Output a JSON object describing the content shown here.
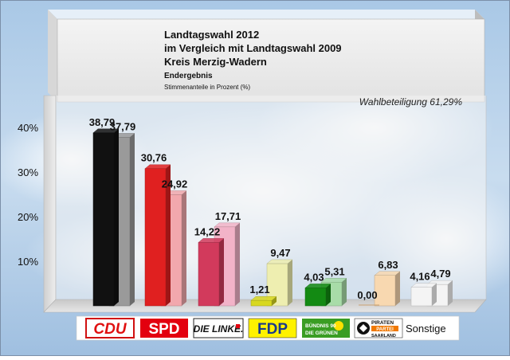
{
  "chart_data": {
    "type": "bar",
    "title_lines": [
      "Landtagswahl 2012",
      "im Vergleich mit Landtagswahl 2009",
      "Kreis Merzig-Wadern"
    ],
    "subtitle": "Endergebnis",
    "note": "Stimmenanteile in Prozent (%)",
    "turnout_label": "Wahlbeteiligung 61,29%",
    "ylim": [
      0,
      45
    ],
    "y_ticks": [
      {
        "value": 10,
        "label": "10%"
      },
      {
        "value": 20,
        "label": "20%"
      },
      {
        "value": 30,
        "label": "30%"
      },
      {
        "value": 40,
        "label": "40%"
      }
    ],
    "categories": [
      "CDU",
      "SPD",
      "DIE LINKE.",
      "FDP",
      "BÜNDNIS 90 DIE GRÜNEN",
      "PIRATEN PARTEI SAARLAND",
      "Sonstige"
    ],
    "series": [
      {
        "values": [
          38.79,
          30.76,
          14.22,
          1.21,
          4.03,
          0.0,
          4.16
        ],
        "labels": [
          "38,79",
          "30,76",
          "14,22",
          "1,21",
          "4,03",
          "0,00",
          "4,16"
        ]
      },
      {
        "values": [
          37.79,
          24.92,
          17.71,
          9.47,
          5.31,
          6.83,
          4.79
        ],
        "labels": [
          "37,79",
          "24,92",
          "17,71",
          "9,47",
          "5,31",
          "6,83",
          "4,79"
        ]
      }
    ],
    "colors_2012": [
      "#111111",
      "#e02020",
      "#d23a5c",
      "#d8d820",
      "#138a13",
      "#ff7a00",
      "#f4f4f4"
    ],
    "colors_2009": [
      "#9a9a9a",
      "#f2a8ad",
      "#f2b3c8",
      "#eeeeb0",
      "#a8dca8",
      "#f8d8b0",
      "#f4f4f4"
    ],
    "logos": {
      "cdu": "CDU",
      "spd": "SPD",
      "linke": "DIE LINKE.",
      "fdp": "FDP",
      "gruene_line1": "BÜNDNIS 90",
      "gruene_line2": "DIE GRÜNEN",
      "piraten_line1": "PIRATEN",
      "piraten_line2": "PARTEI",
      "piraten_line3": "SAARLAND",
      "sonstige": "Sonstige"
    }
  }
}
